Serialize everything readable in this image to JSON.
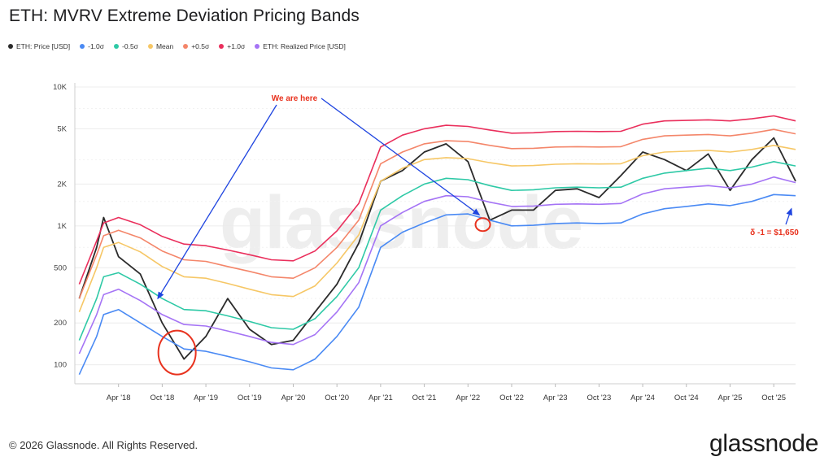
{
  "header": {
    "title": "ETH: MVRV Extreme Deviation Pricing Bands"
  },
  "footer": {
    "copyright": "© 2026 Glassnode. All Rights Reserved.",
    "brand": "glassnode"
  },
  "watermark": "glassnode",
  "colors": {
    "price": "#2b2b2b",
    "minus1": "#4a8af4",
    "minus05": "#2ec9a6",
    "mean": "#f6c766",
    "plus05": "#f4866a",
    "plus1": "#ea2f5c",
    "realized": "#a574f5",
    "annotation": "#e8321e",
    "arrow": "#1f45e0"
  },
  "chart_data": {
    "type": "line",
    "title": "ETH: MVRV Extreme Deviation Pricing Bands",
    "yscale": "log",
    "ylim": [
      75,
      10000
    ],
    "yticks": [
      100,
      200,
      500,
      1000,
      2000,
      5000,
      10000
    ],
    "ytick_labels": [
      "100",
      "200",
      "500",
      "1K",
      "2K",
      "5K",
      "10K"
    ],
    "xlim": [
      2017.75,
      2026.0
    ],
    "xticks": [
      {
        "x": 2018.25,
        "label": "Apr '18"
      },
      {
        "x": 2018.75,
        "label": "Oct '18"
      },
      {
        "x": 2019.25,
        "label": "Apr '19"
      },
      {
        "x": 2019.75,
        "label": "Oct '19"
      },
      {
        "x": 2020.25,
        "label": "Apr '20"
      },
      {
        "x": 2020.75,
        "label": "Oct '20"
      },
      {
        "x": 2021.25,
        "label": "Apr '21"
      },
      {
        "x": 2021.75,
        "label": "Oct '21"
      },
      {
        "x": 2022.25,
        "label": "Apr '22"
      },
      {
        "x": 2022.75,
        "label": "Oct '22"
      },
      {
        "x": 2023.25,
        "label": "Apr '23"
      },
      {
        "x": 2023.75,
        "label": "Oct '23"
      },
      {
        "x": 2024.25,
        "label": "Apr '24"
      },
      {
        "x": 2024.75,
        "label": "Oct '24"
      },
      {
        "x": 2025.25,
        "label": "Apr '25"
      },
      {
        "x": 2025.75,
        "label": "Oct '25"
      }
    ],
    "grid": true,
    "legend_position": "top-left",
    "x": [
      2017.8,
      2018.0,
      2018.08,
      2018.25,
      2018.5,
      2018.75,
      2019.0,
      2019.25,
      2019.5,
      2019.75,
      2020.0,
      2020.25,
      2020.5,
      2020.75,
      2021.0,
      2021.25,
      2021.5,
      2021.75,
      2022.0,
      2022.25,
      2022.5,
      2022.75,
      2023.0,
      2023.25,
      2023.5,
      2023.75,
      2024.0,
      2024.25,
      2024.5,
      2024.75,
      2025.0,
      2025.25,
      2025.5,
      2025.75,
      2026.0
    ],
    "series": [
      {
        "name": "ETH: Price [USD]",
        "color": "#2b2b2b",
        "values": [
          300,
          700,
          1150,
          600,
          450,
          200,
          110,
          160,
          300,
          180,
          140,
          150,
          240,
          380,
          750,
          2100,
          2500,
          3400,
          3900,
          2900,
          1100,
          1300,
          1300,
          1800,
          1850,
          1600,
          2300,
          3400,
          3000,
          2500,
          3300,
          1800,
          3000,
          4300,
          2100
        ]
      },
      {
        "name": "-1.0σ",
        "color": "#4a8af4",
        "values": [
          85,
          160,
          230,
          250,
          200,
          160,
          130,
          125,
          115,
          105,
          95,
          92,
          110,
          160,
          260,
          700,
          900,
          1050,
          1200,
          1220,
          1100,
          1000,
          1010,
          1040,
          1050,
          1040,
          1050,
          1220,
          1330,
          1380,
          1440,
          1400,
          1500,
          1680,
          1650
        ]
      },
      {
        "name": "-0.5σ",
        "color": "#2ec9a6",
        "values": [
          150,
          300,
          430,
          460,
          380,
          300,
          250,
          245,
          225,
          205,
          185,
          180,
          215,
          310,
          500,
          1300,
          1650,
          2000,
          2200,
          2150,
          1950,
          1800,
          1820,
          1880,
          1900,
          1880,
          1900,
          2200,
          2400,
          2500,
          2600,
          2500,
          2650,
          2900,
          2700
        ]
      },
      {
        "name": "Mean",
        "color": "#f6c766",
        "values": [
          240,
          500,
          700,
          760,
          650,
          510,
          430,
          420,
          385,
          350,
          320,
          310,
          370,
          540,
          860,
          2100,
          2600,
          3000,
          3100,
          3050,
          2850,
          2700,
          2720,
          2780,
          2800,
          2790,
          2800,
          3200,
          3400,
          3450,
          3500,
          3400,
          3550,
          3800,
          3550
        ]
      },
      {
        "name": "+0.5σ",
        "color": "#f4866a",
        "values": [
          300,
          620,
          850,
          930,
          820,
          660,
          570,
          555,
          510,
          470,
          430,
          420,
          500,
          700,
          1100,
          2800,
          3400,
          3900,
          4100,
          4050,
          3800,
          3600,
          3620,
          3700,
          3720,
          3700,
          3720,
          4200,
          4450,
          4500,
          4550,
          4450,
          4650,
          4950,
          4600
        ]
      },
      {
        "name": "+1.0σ",
        "color": "#ea2f5c",
        "values": [
          380,
          780,
          1050,
          1150,
          1020,
          840,
          740,
          720,
          670,
          620,
          570,
          560,
          660,
          920,
          1450,
          3700,
          4500,
          5000,
          5300,
          5200,
          4900,
          4650,
          4680,
          4780,
          4800,
          4780,
          4800,
          5400,
          5700,
          5750,
          5800,
          5700,
          5900,
          6200,
          5700
        ]
      },
      {
        "name": "ETH: Realized Price [USD]",
        "color": "#a574f5",
        "values": [
          120,
          230,
          320,
          350,
          290,
          230,
          195,
          190,
          175,
          160,
          145,
          140,
          165,
          240,
          390,
          1000,
          1250,
          1500,
          1650,
          1620,
          1480,
          1380,
          1390,
          1430,
          1440,
          1430,
          1450,
          1700,
          1850,
          1900,
          1950,
          1880,
          2000,
          2250,
          2050
        ]
      }
    ],
    "annotations": [
      {
        "text": "We are here",
        "color": "#e8321e"
      },
      {
        "text": "δ -1 = $1,650",
        "color": "#e8321e"
      }
    ],
    "markers": [
      {
        "name": "circle-2018-bottom",
        "x": 2018.92,
        "y": 110
      },
      {
        "name": "circle-2022-low",
        "x": 2022.42,
        "y": 1050
      }
    ],
    "arrows": [
      {
        "name": "arrow-to-2018",
        "x": 2018.7,
        "y": 300
      },
      {
        "name": "arrow-to-2022",
        "x": 2022.38,
        "y": 1200
      },
      {
        "name": "arrow-to-minus1",
        "x": 2025.98,
        "y": 1650
      }
    ]
  }
}
